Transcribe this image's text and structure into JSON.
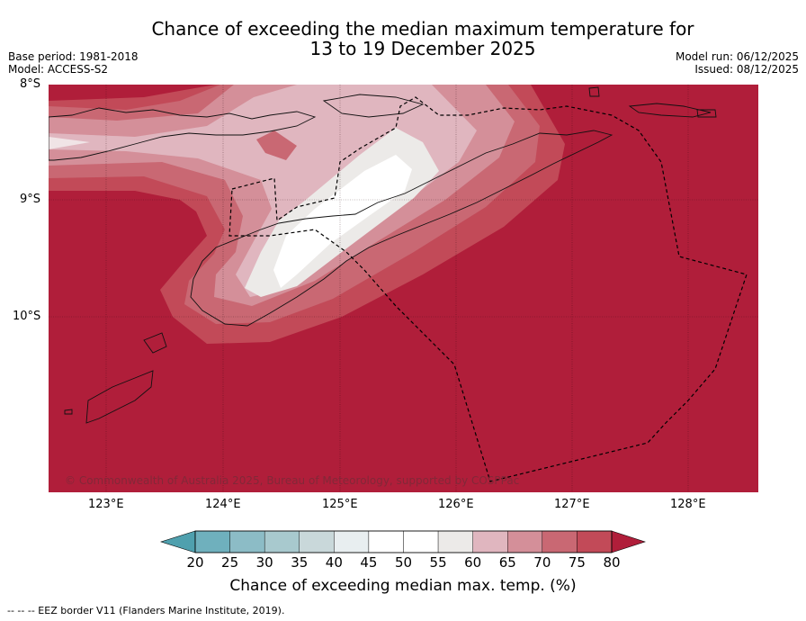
{
  "title": {
    "line1": "Chance of exceeding the median maximum temperature for",
    "line2": "13 to 19 December 2025"
  },
  "meta": {
    "base_period": "Base period: 1981-2018",
    "model": "Model: ACCESS-S2",
    "model_run": "Model run: 06/12/2025",
    "issued": "Issued: 08/12/2025"
  },
  "axes": {
    "lat_labels": [
      "8°S",
      "9°S",
      "10°S"
    ],
    "lon_labels": [
      "123°E",
      "124°E",
      "125°E",
      "126°E",
      "127°E",
      "128°E"
    ]
  },
  "copyright": "© Commonwealth of Australia 2025, Bureau of Meteorology, supported by COSPPac",
  "colorbar": {
    "ticks": [
      "20",
      "25",
      "30",
      "35",
      "40",
      "45",
      "50",
      "55",
      "60",
      "65",
      "70",
      "75",
      "80"
    ],
    "title": "Chance of exceeding median max. temp. (%)",
    "colors": [
      "#4fa0ae",
      "#6fb0bd",
      "#8cbcc6",
      "#a8c9ce",
      "#c9d8da",
      "#e8eef0",
      "#ffffff",
      "#ffffff",
      "#eceae8",
      "#e0b6bf",
      "#d48f99",
      "#c96873",
      "#c24a58",
      "#b01e3a"
    ]
  },
  "legend_note": "--  --  -- EEZ border V11 (Flanders Marine Institute, 2019).",
  "colors": {
    "base": "#b01e3a"
  }
}
